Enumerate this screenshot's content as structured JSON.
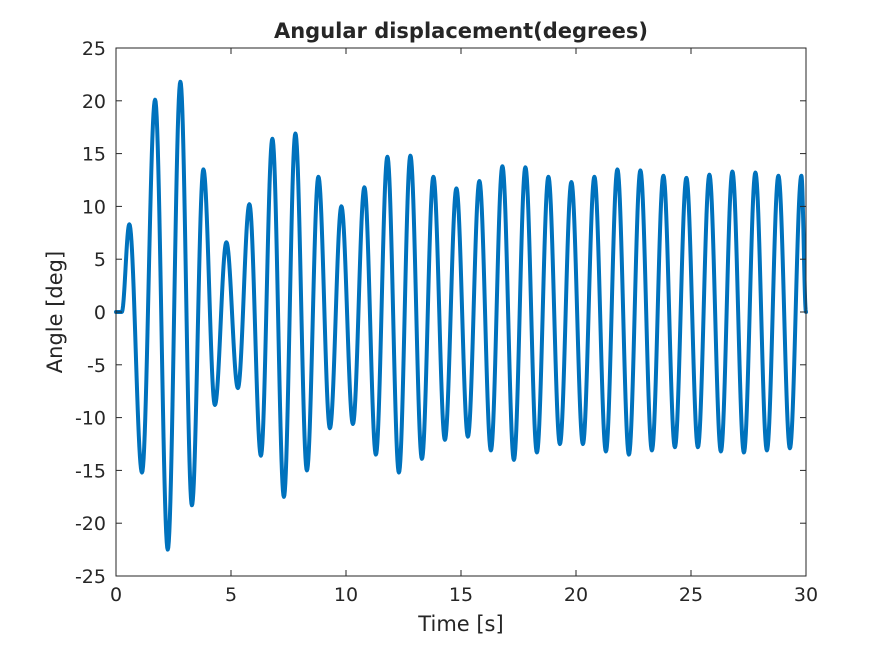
{
  "chart_data": {
    "type": "line",
    "title": "Angular displacement(degrees)",
    "xlabel": "Time [s]",
    "ylabel": "Angle [deg]",
    "xlim": [
      0,
      30
    ],
    "ylim": [
      -25,
      25
    ],
    "xticks": [
      0,
      5,
      10,
      15,
      20,
      25,
      30
    ],
    "yticks": [
      -25,
      -20,
      -15,
      -10,
      -5,
      0,
      5,
      10,
      15,
      20,
      25
    ],
    "grid": false,
    "legend": "none",
    "series": [
      {
        "color": "#0072bd",
        "extrema": [
          [
            0.0,
            0.0
          ],
          [
            0.25,
            0.0
          ],
          [
            0.58,
            8.3
          ],
          [
            1.13,
            -15.2
          ],
          [
            1.7,
            20.1
          ],
          [
            2.25,
            -22.5
          ],
          [
            2.8,
            21.8
          ],
          [
            3.3,
            -18.3
          ],
          [
            3.8,
            13.5
          ],
          [
            4.3,
            -8.8
          ],
          [
            4.8,
            6.6
          ],
          [
            5.3,
            -7.2
          ],
          [
            5.8,
            10.2
          ],
          [
            6.3,
            -13.6
          ],
          [
            6.8,
            16.4
          ],
          [
            7.3,
            -17.5
          ],
          [
            7.8,
            16.9
          ],
          [
            8.3,
            -15.0
          ],
          [
            8.8,
            12.8
          ],
          [
            9.3,
            -11.0
          ],
          [
            9.8,
            10.0
          ],
          [
            10.3,
            -10.6
          ],
          [
            10.8,
            11.8
          ],
          [
            11.3,
            -13.5
          ],
          [
            11.8,
            14.7
          ],
          [
            12.3,
            -15.2
          ],
          [
            12.8,
            14.8
          ],
          [
            13.3,
            -13.9
          ],
          [
            13.8,
            12.8
          ],
          [
            14.3,
            -12.1
          ],
          [
            14.8,
            11.7
          ],
          [
            15.3,
            -11.8
          ],
          [
            15.8,
            12.4
          ],
          [
            16.3,
            -13.1
          ],
          [
            16.8,
            13.8
          ],
          [
            17.3,
            -14.0
          ],
          [
            17.8,
            13.7
          ],
          [
            18.3,
            -13.3
          ],
          [
            18.8,
            12.8
          ],
          [
            19.3,
            -12.5
          ],
          [
            19.8,
            12.3
          ],
          [
            20.3,
            -12.5
          ],
          [
            20.8,
            12.8
          ],
          [
            21.3,
            -13.2
          ],
          [
            21.8,
            13.5
          ],
          [
            22.3,
            -13.5
          ],
          [
            22.8,
            13.4
          ],
          [
            23.3,
            -13.1
          ],
          [
            23.8,
            12.9
          ],
          [
            24.3,
            -12.8
          ],
          [
            24.8,
            12.7
          ],
          [
            25.3,
            -12.8
          ],
          [
            25.8,
            13.0
          ],
          [
            26.3,
            -13.2
          ],
          [
            26.8,
            13.3
          ],
          [
            27.3,
            -13.3
          ],
          [
            27.8,
            13.2
          ],
          [
            28.3,
            -13.1
          ],
          [
            28.8,
            12.9
          ],
          [
            29.3,
            -12.9
          ],
          [
            29.8,
            12.9
          ],
          [
            30.0,
            0.0
          ]
        ]
      }
    ]
  }
}
